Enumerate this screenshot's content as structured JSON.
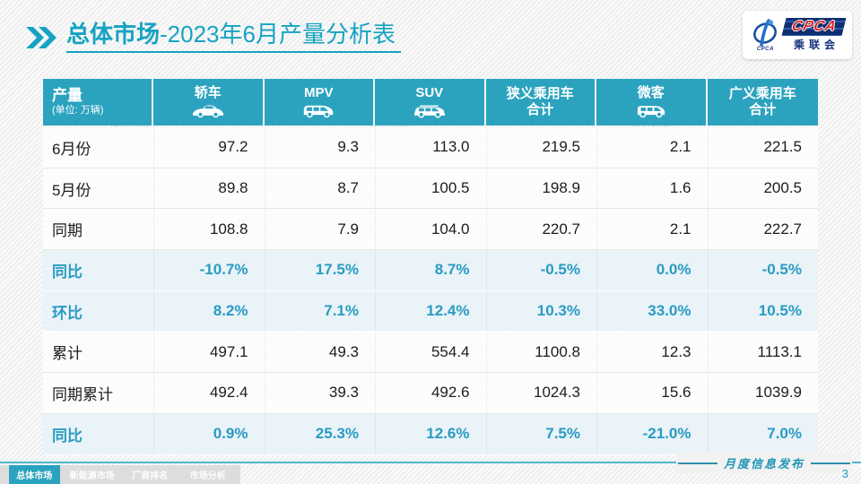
{
  "title": {
    "section": "总体市场",
    "suffix": "-2023年6月产量分析表"
  },
  "logo": {
    "cpca": "CPCA",
    "name": "乘联会",
    "emblem_caption": "CPCA"
  },
  "table": {
    "header": {
      "label": "产量",
      "unit": "(单位: 万辆)"
    },
    "columns": [
      {
        "label": "轿车",
        "icon": "sedan-icon"
      },
      {
        "label": "MPV",
        "icon": "mpv-icon"
      },
      {
        "label": "SUV",
        "icon": "suv-icon"
      },
      {
        "label": "狭义乘用车",
        "label2": "合计"
      },
      {
        "label": "微客",
        "icon": "microvan-icon"
      },
      {
        "label": "广义乘用车",
        "label2": "合计"
      }
    ],
    "rows": [
      {
        "label": "6月份",
        "style": "normal",
        "values": [
          "97.2",
          "9.3",
          "113.0",
          "219.5",
          "2.1",
          "221.5"
        ]
      },
      {
        "label": "5月份",
        "style": "normal",
        "values": [
          "89.8",
          "8.7",
          "100.5",
          "198.9",
          "1.6",
          "200.5"
        ]
      },
      {
        "label": "同期",
        "style": "normal",
        "values": [
          "108.8",
          "7.9",
          "104.0",
          "220.7",
          "2.1",
          "222.7"
        ]
      },
      {
        "label": "同比",
        "style": "percent",
        "values": [
          "-10.7%",
          "17.5%",
          "8.7%",
          "-0.5%",
          "0.0%",
          "-0.5%"
        ]
      },
      {
        "label": "环比",
        "style": "percent",
        "values": [
          "8.2%",
          "7.1%",
          "12.4%",
          "10.3%",
          "33.0%",
          "10.5%"
        ]
      },
      {
        "label": "累计",
        "style": "normal",
        "values": [
          "497.1",
          "49.3",
          "554.4",
          "1100.8",
          "12.3",
          "1113.1"
        ]
      },
      {
        "label": "同期累计",
        "style": "normal",
        "values": [
          "492.4",
          "39.3",
          "492.6",
          "1024.3",
          "15.6",
          "1039.9"
        ]
      },
      {
        "label": "同比",
        "style": "percent",
        "values": [
          "0.9%",
          "25.3%",
          "12.6%",
          "7.5%",
          "-21.0%",
          "7.0%"
        ]
      }
    ]
  },
  "footer": {
    "tabs": [
      {
        "label": "总体市场",
        "active": true
      },
      {
        "label": "新能源市场",
        "active": false
      },
      {
        "label": "厂商排名",
        "active": false
      },
      {
        "label": "市场分析",
        "active": false
      }
    ],
    "release_label": "月度信息发布",
    "page_number": "3"
  },
  "colors": {
    "accent_teal": "#16A3C3",
    "header_bg": "#2BA3BF",
    "percent_text": "#2A9BC2",
    "percent_row_bg": "#E9F3F8",
    "bottom_line": "#4FB6CB",
    "logo_red": "#D6252B",
    "logo_navy": "#16327E"
  }
}
